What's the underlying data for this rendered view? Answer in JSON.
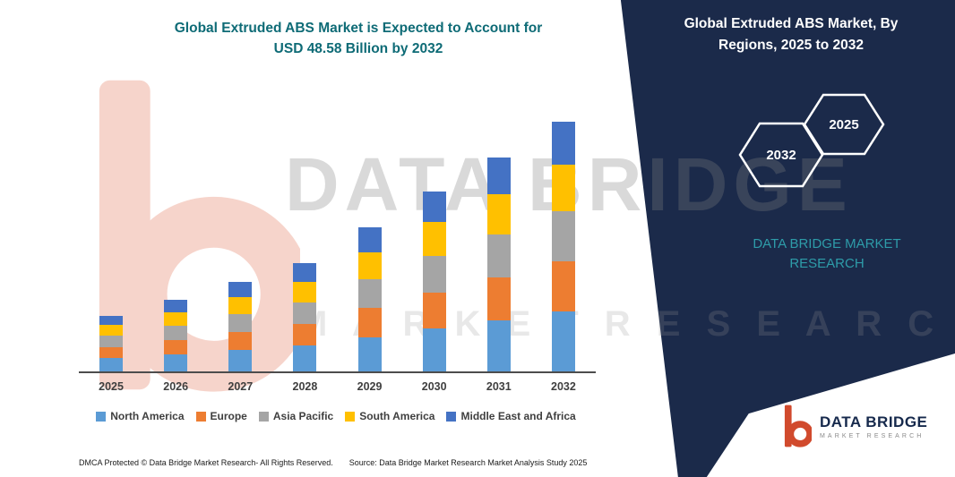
{
  "title": {
    "line1": "Global Extruded ABS Market is Expected to Account for",
    "line2": "USD 48.58 Billion by 2032"
  },
  "right_panel": {
    "heading": "Global  Extruded ABS Market, By Regions, 2025 to 2032",
    "hexagon_back": "2032",
    "hexagon_front": "2025",
    "brand": "DATA BRIDGE MARKET RESEARCH",
    "panel_color": "#1b2a4a",
    "brand_color": "#2e9ca9"
  },
  "watermark": {
    "line1": "DATA BRIDGE",
    "line2": "M A R K E T   R E S E A R C H"
  },
  "chart_data": {
    "type": "bar",
    "stacked": true,
    "title": "Global Extruded ABS Market is Expected to Account for USD 48.58 Billion by 2032",
    "categories": [
      "2025",
      "2026",
      "2027",
      "2028",
      "2029",
      "2030",
      "2031",
      "2032"
    ],
    "series": [
      {
        "name": "North America",
        "color": "#5B9BD5",
        "values": [
          2.6,
          3.3,
          4.2,
          5.1,
          6.7,
          8.4,
          10.0,
          11.7
        ]
      },
      {
        "name": "Europe",
        "color": "#ED7D31",
        "values": [
          2.2,
          2.8,
          3.5,
          4.2,
          5.6,
          7.0,
          8.3,
          9.7
        ]
      },
      {
        "name": "Asia Pacific",
        "color": "#A5A5A5",
        "values": [
          2.2,
          2.8,
          3.5,
          4.2,
          5.6,
          7.0,
          8.3,
          9.7
        ]
      },
      {
        "name": "South America",
        "color": "#FFC000",
        "values": [
          2.1,
          2.6,
          3.3,
          4.0,
          5.3,
          6.7,
          7.9,
          9.2
        ]
      },
      {
        "name": "Middle East and Africa",
        "color": "#4472C4",
        "values": [
          1.8,
          2.4,
          3.0,
          3.6,
          4.8,
          6.0,
          7.1,
          8.3
        ]
      }
    ],
    "totals_estimated": [
      10.9,
      13.9,
      17.5,
      21.1,
      28.0,
      35.1,
      41.6,
      48.58
    ],
    "xlabel": "",
    "ylabel": "",
    "ylim": [
      0,
      50
    ],
    "grid": false,
    "legend_position": "bottom"
  },
  "corner_logo": {
    "name": "DATA BRIDGE",
    "sub": "MARKET RESEARCH"
  },
  "footer": {
    "dmca": "DMCA Protected © Data Bridge Market Research- All Rights Reserved.",
    "source": "Source: Data Bridge Market Research Market Analysis Study 2025"
  }
}
